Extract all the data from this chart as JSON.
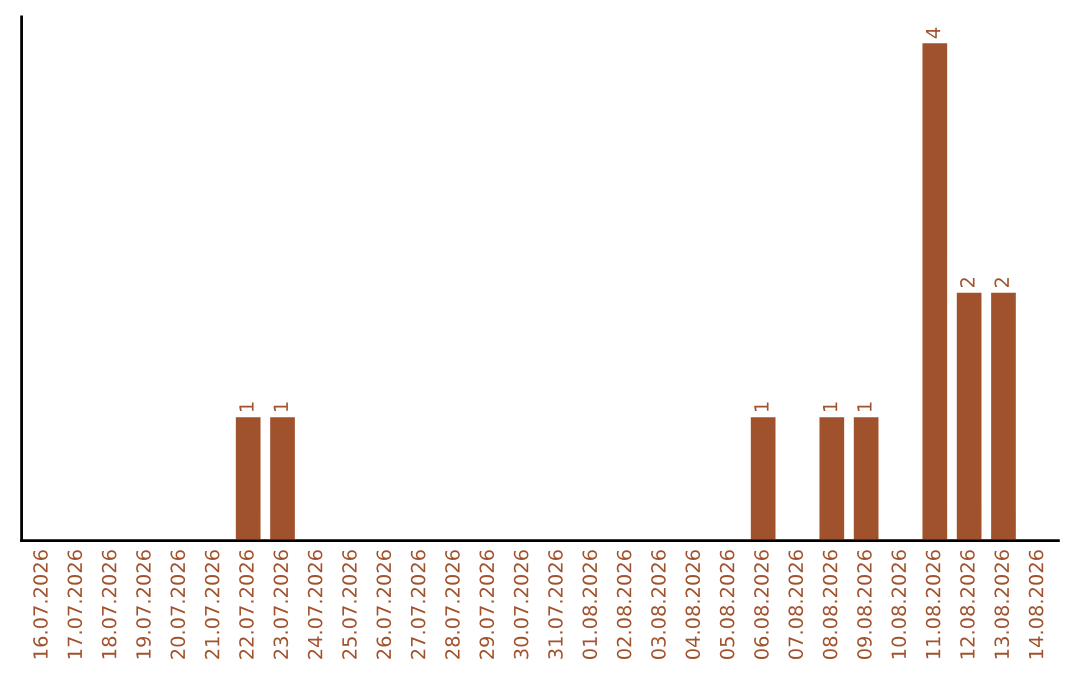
{
  "chart_data": {
    "type": "bar",
    "categories": [
      "16.07.2026",
      "17.07.2026",
      "18.07.2026",
      "19.07.2026",
      "20.07.2026",
      "21.07.2026",
      "22.07.2026",
      "23.07.2026",
      "24.07.2026",
      "25.07.2026",
      "26.07.2026",
      "27.07.2026",
      "28.07.2026",
      "29.07.2026",
      "30.07.2026",
      "31.07.2026",
      "01.08.2026",
      "02.08.2026",
      "03.08.2026",
      "04.08.2026",
      "05.08.2026",
      "06.08.2026",
      "07.08.2026",
      "08.08.2026",
      "09.08.2026",
      "10.08.2026",
      "11.08.2026",
      "12.08.2026",
      "13.08.2026",
      "14.08.2026"
    ],
    "values": [
      null,
      null,
      null,
      null,
      null,
      null,
      1,
      1,
      null,
      null,
      null,
      null,
      null,
      null,
      null,
      null,
      null,
      null,
      null,
      null,
      null,
      1,
      null,
      1,
      1,
      null,
      4,
      2,
      2,
      null
    ],
    "color": "#a0522d",
    "data_labels": true,
    "tick_labels": "x",
    "grid": false
  }
}
